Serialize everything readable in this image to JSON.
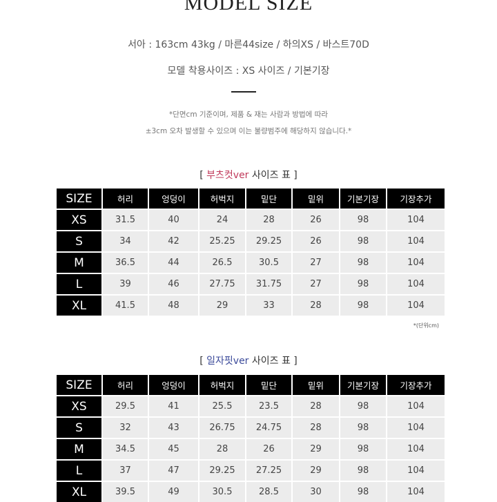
{
  "title": "MODEL SIZE",
  "model_info": "서아 : 163cm 43kg / 마른44size / 하의XS / 바스트70D",
  "model_wear": "모델 착용사이즈 : XS 사이즈 / 기본기장",
  "note_line1": "*단면cm 기준이며, 제품 & 재는 사람과 방법에 따라",
  "note_line2": "±3cm 오차 발생할 수 있으며 이는 불량범주에 해당하지 않습니다.*",
  "unit_note": "*(단위cm)",
  "tables": [
    {
      "caption_open": "[ ",
      "caption_highlight": "부츠컷ver",
      "caption_rest": " 사이즈 표 ]",
      "highlight_color": "#c0395a",
      "headers": [
        "SIZE",
        "허리",
        "엉덩이",
        "허벅지",
        "밑단",
        "밑위",
        "기본기장",
        "기장추가"
      ],
      "rows": [
        [
          "XS",
          "31.5",
          "40",
          "24",
          "28",
          "26",
          "98",
          "104"
        ],
        [
          "S",
          "34",
          "42",
          "25.25",
          "29.25",
          "26",
          "98",
          "104"
        ],
        [
          "M",
          "36.5",
          "44",
          "26.5",
          "30.5",
          "27",
          "98",
          "104"
        ],
        [
          "L",
          "39",
          "46",
          "27.75",
          "31.75",
          "27",
          "98",
          "104"
        ],
        [
          "XL",
          "41.5",
          "48",
          "29",
          "33",
          "28",
          "98",
          "104"
        ]
      ]
    },
    {
      "caption_open": "[ ",
      "caption_highlight": "일자핏ver",
      "caption_rest": " 사이즈 표 ]",
      "highlight_color": "#3b4a9a",
      "headers": [
        "SIZE",
        "허리",
        "엉덩이",
        "허벅지",
        "밑단",
        "밑위",
        "기본기장",
        "기장추가"
      ],
      "rows": [
        [
          "XS",
          "29.5",
          "41",
          "25.5",
          "23.5",
          "28",
          "98",
          "104"
        ],
        [
          "S",
          "32",
          "43",
          "26.75",
          "24.75",
          "28",
          "98",
          "104"
        ],
        [
          "M",
          "34.5",
          "45",
          "28",
          "26",
          "29",
          "98",
          "104"
        ],
        [
          "L",
          "37",
          "47",
          "29.25",
          "27.25",
          "29",
          "98",
          "104"
        ],
        [
          "XL",
          "39.5",
          "49",
          "30.5",
          "28.5",
          "30",
          "98",
          "104"
        ]
      ]
    }
  ]
}
